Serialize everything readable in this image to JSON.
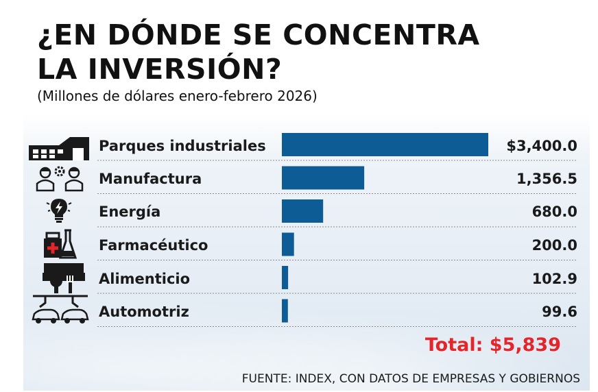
{
  "title_line1": "¿EN DÓNDE SE CONCENTRA",
  "title_line2": "LA INVERSIÓN?",
  "subtitle": "(Millones de dólares enero-febrero 2026)",
  "total": "Total: $5,839",
  "source": "FUENTE: INDEX, CON DATOS DE EMPRESAS Y GOBIERNOS",
  "colors": {
    "bar": "#0e5c96",
    "total": "#e3262b",
    "text": "#1a1a1a"
  },
  "chart_data": {
    "type": "bar",
    "orientation": "horizontal",
    "title": "¿EN DÓNDE SE CONCENTRA LA INVERSIÓN?",
    "subtitle": "(Millones de dólares enero-febrero 2026)",
    "categories": [
      "Parques industriales",
      "Manufactura",
      "Energía",
      "Farmacéutico",
      "Alimenticio",
      "Automotriz"
    ],
    "values": [
      3400.0,
      1356.5,
      680.0,
      200.0,
      102.9,
      99.6
    ],
    "value_labels": [
      "$3,400.0",
      "1,356.5",
      "680.0",
      "200.0",
      "102.9",
      "99.6"
    ],
    "icons": [
      "factory-icon",
      "workers-gear-icon",
      "lightbulb-energy-icon",
      "pharma-flask-icon",
      "food-utensils-icon",
      "automotive-robot-icon"
    ],
    "xlim": [
      0,
      3400
    ],
    "grid": false
  }
}
